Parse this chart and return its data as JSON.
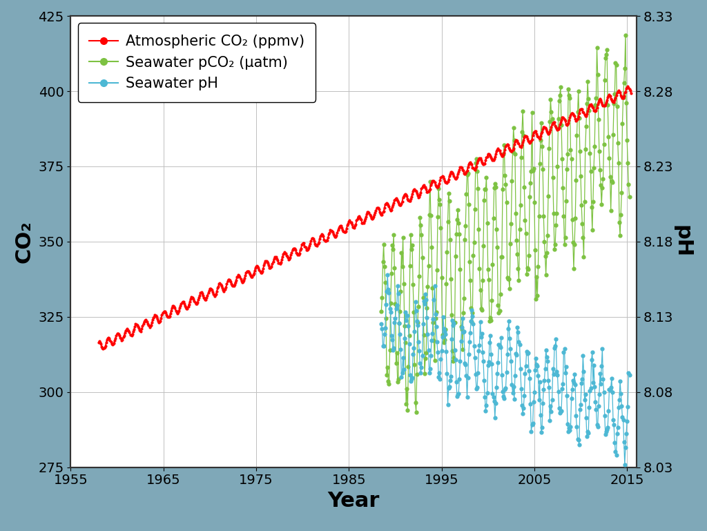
{
  "background_color": "#7fa8b8",
  "plot_bg_color": "#ffffff",
  "xlabel": "Year",
  "ylabel_left": "CO₂",
  "ylabel_right": "pH",
  "xlim": [
    1956,
    2016
  ],
  "ylim_left": [
    275,
    425
  ],
  "ylim_right": [
    8.03,
    8.33
  ],
  "yticks_left": [
    275,
    300,
    325,
    350,
    375,
    400,
    425
  ],
  "yticks_right": [
    8.03,
    8.08,
    8.13,
    8.18,
    8.23,
    8.28,
    8.33
  ],
  "xticks": [
    1955,
    1965,
    1975,
    1985,
    1995,
    2005,
    2015
  ],
  "legend_labels": [
    "Atmospheric CO₂ (ppmv)",
    "Seawater pCO₂ (μatm)",
    "Seawater pH"
  ],
  "line_colors": [
    "#ff0000",
    "#7dc242",
    "#4db8d4"
  ],
  "xlabel_fontsize": 22,
  "ylabel_fontsize": 22,
  "tick_fontsize": 14,
  "legend_fontsize": 15
}
